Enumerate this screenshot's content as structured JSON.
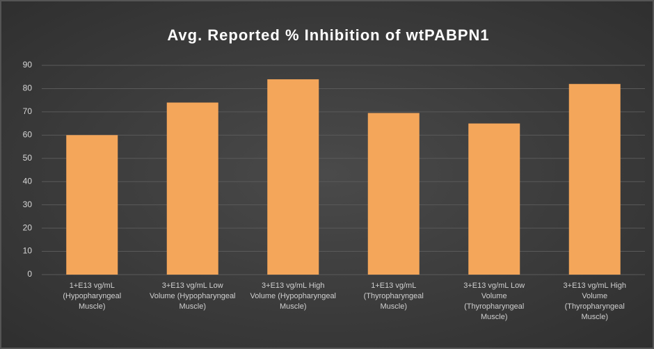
{
  "chart_data": {
    "type": "bar",
    "title": "Avg. Reported % Inhibition of wtPABPN1",
    "categories": [
      "1+E13 vg/mL (Hypopharyngeal Muscle)",
      "3+E13 vg/mL Low Volume (Hypopharyngeal Muscle)",
      "3+E13 vg/mL High Volume (Hypopharyngeal Muscle)",
      "1+E13 vg/mL (Thyropharyngeal Muscle)",
      "3+E13 vg/mL Low Volume (Thyropharyngeal Muscle)",
      "3+E13 vg/mL High Volume (Thyropharyngeal Muscle)"
    ],
    "values": [
      60,
      74,
      84,
      69.5,
      65,
      82
    ],
    "color": "#f4a65a",
    "ylim": [
      0,
      90
    ],
    "yticks": [
      0,
      10,
      20,
      30,
      40,
      50,
      60,
      70,
      80,
      90
    ],
    "grid": true
  }
}
